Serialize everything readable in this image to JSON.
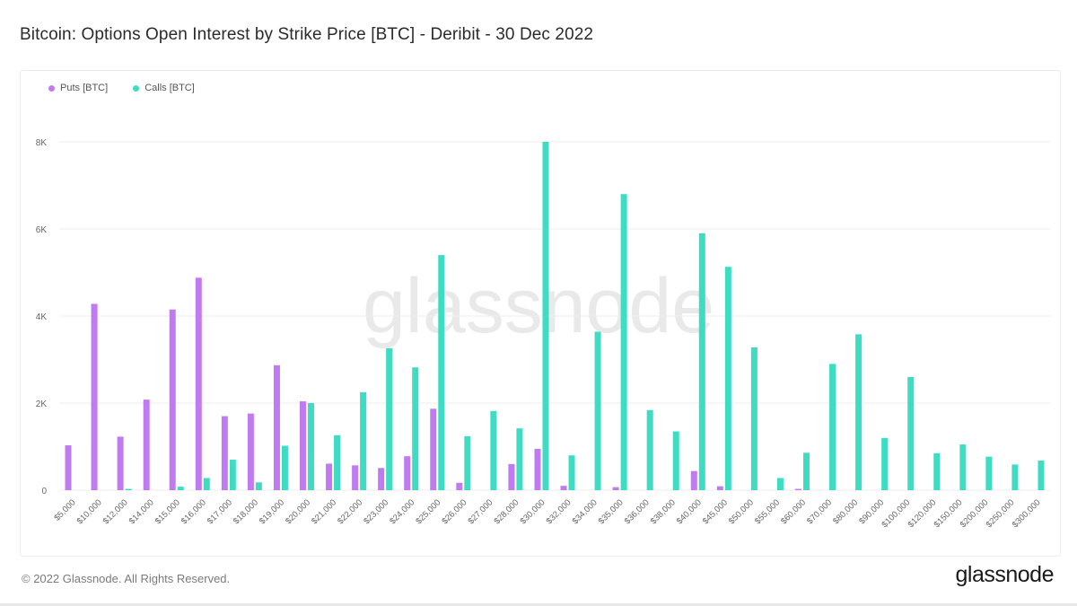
{
  "title": "Bitcoin: Options Open Interest by Strike Price [BTC] - Deribit - 30 Dec 2022",
  "footer": "© 2022 Glassnode. All Rights Reserved.",
  "brand": "glassnode",
  "watermark": "glassnode",
  "colors": {
    "puts": "#c07bf0",
    "calls": "#3fdcc4",
    "grid": "#eeeeee",
    "axis_text": "#666666",
    "watermark": "#e9e9e9"
  },
  "chart_data": {
    "type": "bar",
    "title": "Bitcoin: Options Open Interest by Strike Price [BTC] - Deribit - 30 Dec 2022",
    "xlabel": "",
    "ylabel": "",
    "ylim": [
      0,
      8000
    ],
    "yticks": [
      0,
      2000,
      4000,
      6000,
      8000
    ],
    "ytick_labels": [
      "0",
      "2K",
      "4K",
      "6K",
      "8K"
    ],
    "grid": true,
    "legend_position": "top-left",
    "categories": [
      "$5,000",
      "$10,000",
      "$12,000",
      "$14,000",
      "$15,000",
      "$16,000",
      "$17,000",
      "$18,000",
      "$19,000",
      "$20,000",
      "$21,000",
      "$22,000",
      "$23,000",
      "$24,000",
      "$25,000",
      "$26,000",
      "$27,000",
      "$28,000",
      "$30,000",
      "$32,000",
      "$34,000",
      "$35,000",
      "$36,000",
      "$38,000",
      "$40,000",
      "$45,000",
      "$50,000",
      "$55,000",
      "$60,000",
      "$70,000",
      "$80,000",
      "$90,000",
      "$100,000",
      "$120,000",
      "$150,000",
      "$200,000",
      "$250,000",
      "$300,000"
    ],
    "series": [
      {
        "name": "Puts [BTC]",
        "values": [
          1030,
          4280,
          1230,
          2080,
          4150,
          4880,
          1700,
          1760,
          2870,
          2040,
          610,
          570,
          510,
          780,
          1870,
          170,
          0,
          600,
          950,
          100,
          0,
          70,
          0,
          0,
          440,
          90,
          0,
          0,
          30,
          0,
          0,
          0,
          0,
          0,
          0,
          0,
          0,
          0
        ]
      },
      {
        "name": "Calls [BTC]",
        "values": [
          0,
          0,
          30,
          0,
          80,
          280,
          700,
          180,
          1020,
          2000,
          1260,
          2250,
          3260,
          2820,
          5400,
          1240,
          1820,
          1420,
          8000,
          800,
          3640,
          6800,
          1840,
          1350,
          5900,
          5130,
          3280,
          280,
          860,
          2900,
          3580,
          1200,
          2600,
          850,
          1050,
          770,
          590,
          680
        ]
      }
    ]
  }
}
